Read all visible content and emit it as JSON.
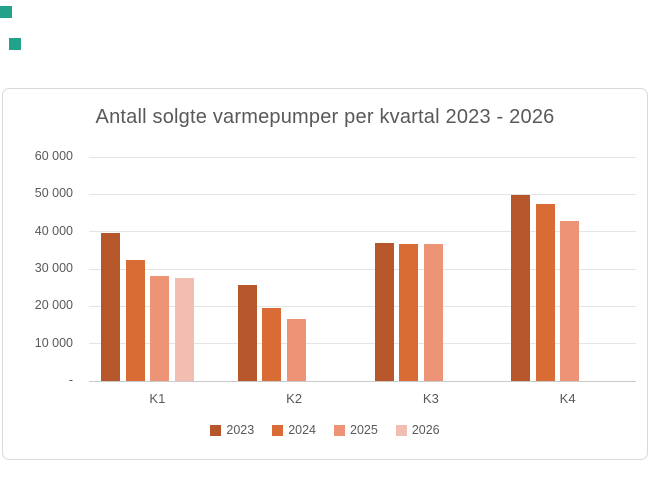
{
  "page": {
    "background": "#ffffff",
    "frame_border_color": "#d9d9d9",
    "text_color": "#595959",
    "gridline_color": "#e4e4e4",
    "axis_line_color": "#c9c9c9"
  },
  "markers": {
    "square1_color": "#23a28b",
    "square2_color": "#23a28b"
  },
  "chart_data": {
    "type": "bar",
    "title": "Antall solgte varmepumper per kvartal 2023 - 2026",
    "categories": [
      "K1",
      "K2",
      "K3",
      "K4"
    ],
    "series": [
      {
        "name": "2023",
        "color": "#b5572b",
        "values": [
          39600,
          25700,
          37000,
          49800
        ]
      },
      {
        "name": "2024",
        "color": "#d96c34",
        "values": [
          32500,
          19500,
          36600,
          47500
        ]
      },
      {
        "name": "2025",
        "color": "#ec9475",
        "values": [
          28000,
          16700,
          36600,
          42900
        ]
      },
      {
        "name": "2026",
        "color": "#f2beb1",
        "values": [
          27500,
          null,
          null,
          null
        ]
      }
    ],
    "ylim": [
      0,
      60000
    ],
    "ytick_step": 10000,
    "ytick_labels": [
      "-",
      "10 000",
      "20 000",
      "30 000",
      "40 000",
      "50 000",
      "60 000"
    ],
    "grid": true,
    "legend_position": "bottom"
  }
}
